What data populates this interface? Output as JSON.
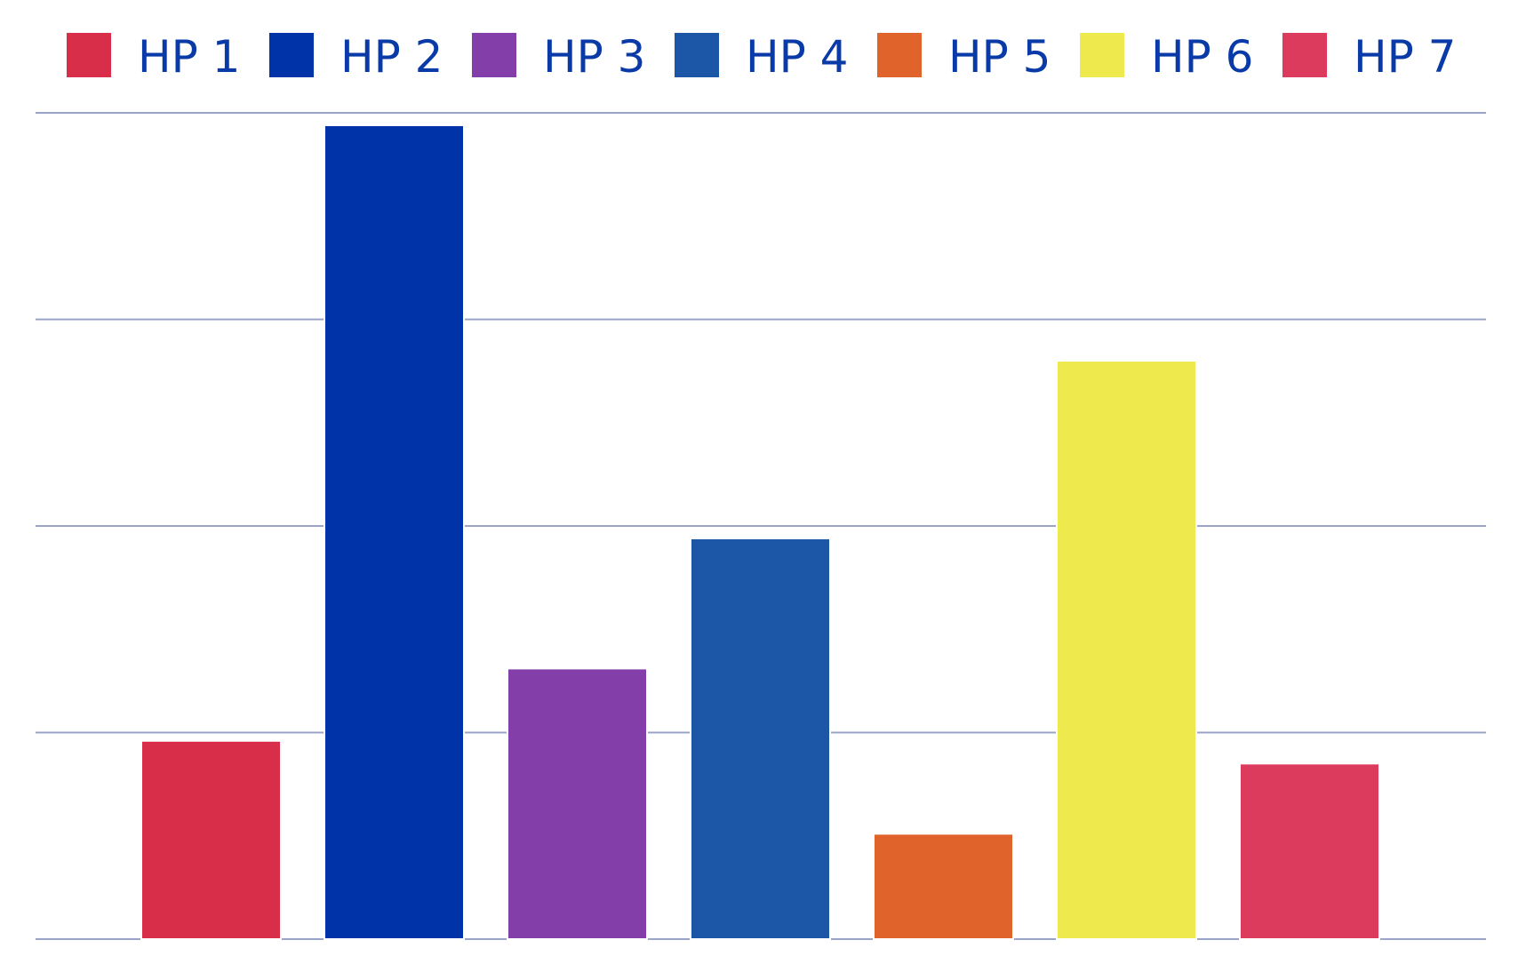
{
  "chart_data": {
    "type": "bar",
    "title": "",
    "xlabel": "",
    "ylabel": "",
    "ylim": [
      0,
      4
    ],
    "grid": true,
    "legend_position": "top",
    "label_color": "#0a3aa8",
    "gridline_color": "#9aa3c8",
    "series": [
      {
        "name": "HP 1",
        "value": 0.96,
        "color": "#d92e4a"
      },
      {
        "name": "HP 2",
        "value": 3.94,
        "color": "#0033a8"
      },
      {
        "name": "HP 3",
        "value": 1.31,
        "color": "#833ea9"
      },
      {
        "name": "HP 4",
        "value": 1.94,
        "color": "#1b57a6"
      },
      {
        "name": "HP 5",
        "value": 0.51,
        "color": "#df632b"
      },
      {
        "name": "HP 6",
        "value": 2.8,
        "color": "#eeea4d"
      },
      {
        "name": "HP 7",
        "value": 0.85,
        "color": "#dd3b5e"
      }
    ]
  }
}
